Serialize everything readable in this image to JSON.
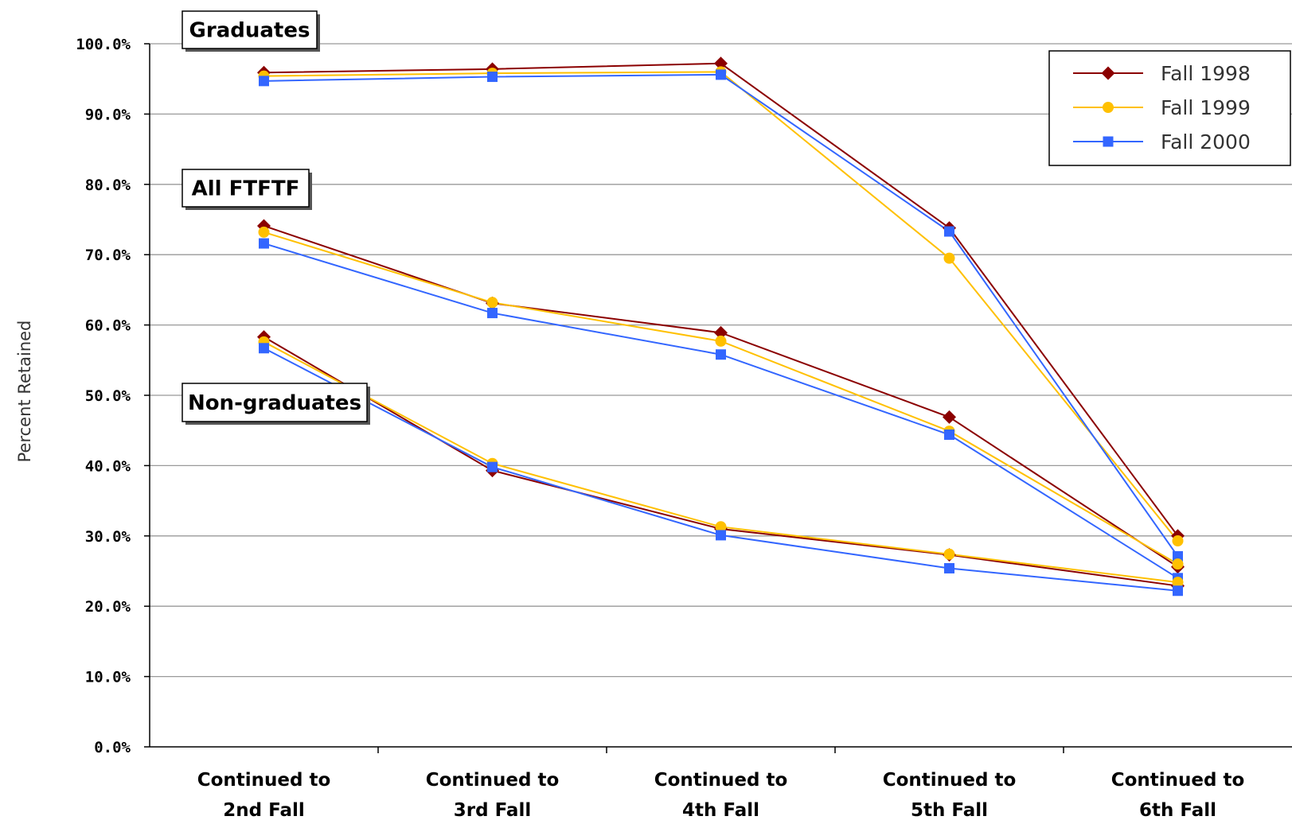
{
  "chart_data": {
    "type": "line",
    "ylabel": "Percent Retained",
    "ylim": [
      0,
      100
    ],
    "yticks": [
      "0.0%",
      "10.0%",
      "20.0%",
      "30.0%",
      "40.0%",
      "50.0%",
      "60.0%",
      "70.0%",
      "80.0%",
      "90.0%",
      "100.0%"
    ],
    "categories": [
      [
        "Continued to",
        "2nd Fall"
      ],
      [
        "Continued to",
        "3rd Fall"
      ],
      [
        "Continued to",
        "4th Fall"
      ],
      [
        "Continued to",
        "5th Fall"
      ],
      [
        "Continued to",
        "6th Fall"
      ]
    ],
    "grid": true,
    "legend_position": "top-right",
    "series": [
      {
        "name": "Fall 1998",
        "color": "#8b0000",
        "marker": "diamond"
      },
      {
        "name": "Fall 1999",
        "color": "#ffc000",
        "marker": "circle"
      },
      {
        "name": "Fall 2000",
        "color": "#3366ff",
        "marker": "square"
      }
    ],
    "groups": [
      {
        "label": "Graduates",
        "values": [
          [
            95.9,
            96.4,
            97.2,
            73.8,
            30.0
          ],
          [
            95.4,
            95.8,
            96.0,
            69.5,
            29.3
          ],
          [
            94.7,
            95.3,
            95.6,
            73.3,
            27.1
          ]
        ]
      },
      {
        "label": "All FTFTF",
        "values": [
          [
            74.1,
            63.1,
            58.9,
            46.9,
            25.6
          ],
          [
            73.2,
            63.2,
            57.7,
            44.9,
            26.0
          ],
          [
            71.6,
            61.7,
            55.8,
            44.4,
            24.0
          ]
        ]
      },
      {
        "label": "Non-graduates",
        "values": [
          [
            58.3,
            39.3,
            31.0,
            27.3,
            22.9
          ],
          [
            57.6,
            40.3,
            31.3,
            27.4,
            23.4
          ],
          [
            56.7,
            39.8,
            30.1,
            25.4,
            22.2
          ]
        ]
      }
    ]
  }
}
